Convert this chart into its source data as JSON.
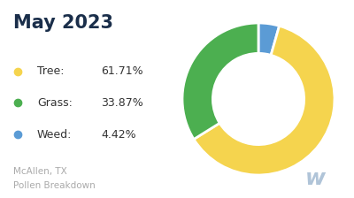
{
  "title": "May 2023",
  "title_color": "#1a2e4a",
  "title_fontsize": 15,
  "title_fontweight": "bold",
  "labels": [
    "Tree",
    "Grass",
    "Weed"
  ],
  "values": [
    61.71,
    33.87,
    4.42
  ],
  "colors": [
    "#f5d44e",
    "#4caf50",
    "#5b9bd5"
  ],
  "legend_dot_colors": [
    "#f5d44e",
    "#4caf50",
    "#5b9bd5"
  ],
  "leg_labels": [
    "Tree:",
    "Grass:",
    "Weed:"
  ],
  "leg_values": [
    "61.71%",
    "33.87%",
    "4.42%"
  ],
  "footer_line1": "McAllen, TX",
  "footer_line2": "Pollen Breakdown",
  "footer_color": "#aaaaaa",
  "footer_fontsize": 7.5,
  "label_fontsize": 9,
  "background_color": "#ffffff",
  "pie_order": [
    2,
    0,
    1
  ],
  "watermark": "w",
  "watermark_color": "#b0c4d8"
}
